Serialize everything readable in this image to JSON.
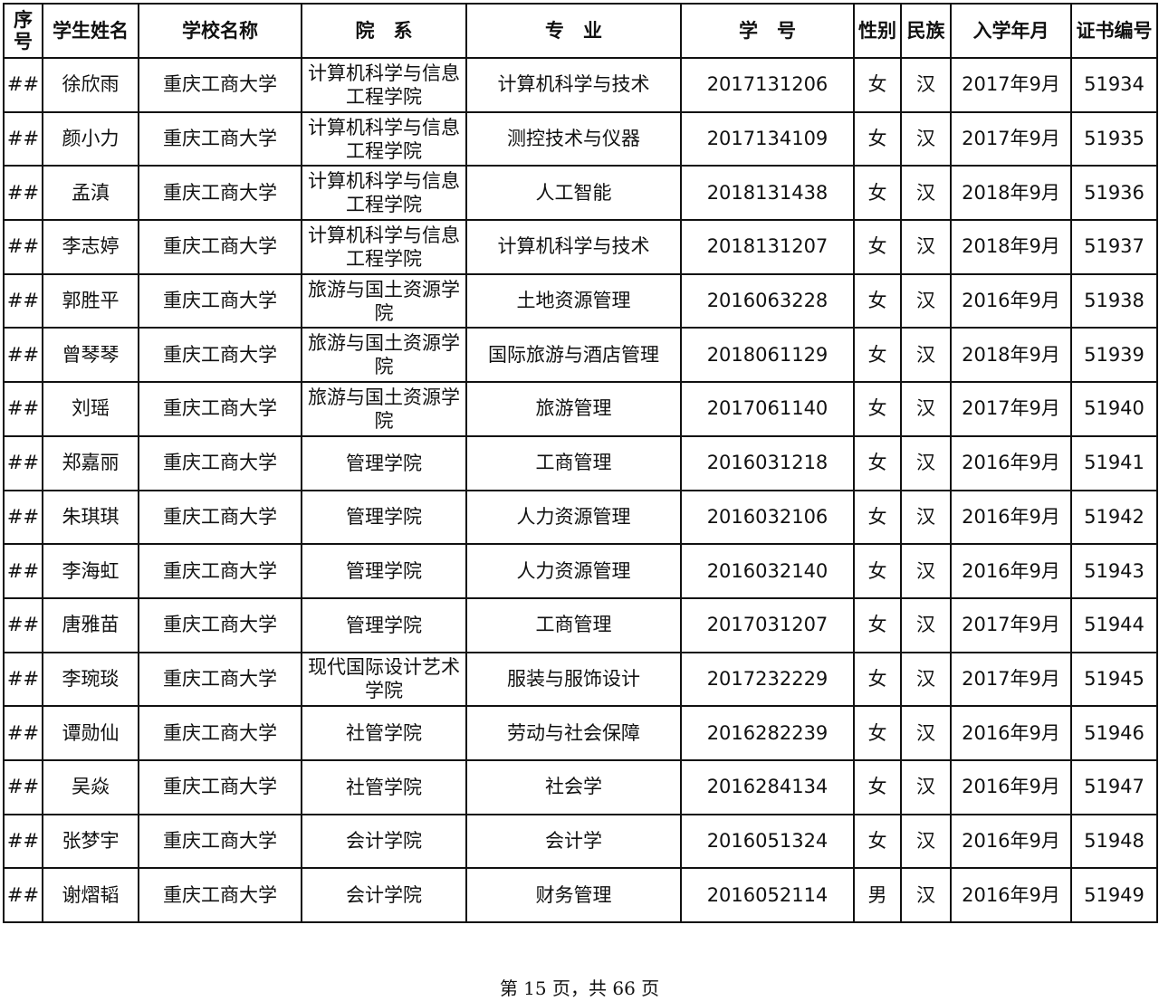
{
  "table": {
    "headers": [
      "序号",
      "学生姓名",
      "学校名称",
      "院　系",
      "专　业",
      "学　号",
      "性别",
      "民族",
      "入学年月",
      "证书编号"
    ],
    "rows": [
      [
        "##",
        "徐欣雨",
        "重庆工商大学",
        "计算机科学与信息工程学院",
        "计算机科学与技术",
        "2017131206",
        "女",
        "汉",
        "2017年9月",
        "51934"
      ],
      [
        "##",
        "颜小力",
        "重庆工商大学",
        "计算机科学与信息工程学院",
        "测控技术与仪器",
        "2017134109",
        "女",
        "汉",
        "2017年9月",
        "51935"
      ],
      [
        "##",
        "孟滇",
        "重庆工商大学",
        "计算机科学与信息工程学院",
        "人工智能",
        "2018131438",
        "女",
        "汉",
        "2018年9月",
        "51936"
      ],
      [
        "##",
        "李志婷",
        "重庆工商大学",
        "计算机科学与信息工程学院",
        "计算机科学与技术",
        "2018131207",
        "女",
        "汉",
        "2018年9月",
        "51937"
      ],
      [
        "##",
        "郭胜平",
        "重庆工商大学",
        "旅游与国土资源学院",
        "土地资源管理",
        "2016063228",
        "女",
        "汉",
        "2016年9月",
        "51938"
      ],
      [
        "##",
        "曾琴琴",
        "重庆工商大学",
        "旅游与国土资源学院",
        "国际旅游与酒店管理",
        "2018061129",
        "女",
        "汉",
        "2018年9月",
        "51939"
      ],
      [
        "##",
        "刘瑶",
        "重庆工商大学",
        "旅游与国土资源学院",
        "旅游管理",
        "2017061140",
        "女",
        "汉",
        "2017年9月",
        "51940"
      ],
      [
        "##",
        "郑嘉丽",
        "重庆工商大学",
        "管理学院",
        "工商管理",
        "2016031218",
        "女",
        "汉",
        "2016年9月",
        "51941"
      ],
      [
        "##",
        "朱琪琪",
        "重庆工商大学",
        "管理学院",
        "人力资源管理",
        "2016032106",
        "女",
        "汉",
        "2016年9月",
        "51942"
      ],
      [
        "##",
        "李海虹",
        "重庆工商大学",
        "管理学院",
        "人力资源管理",
        "2016032140",
        "女",
        "汉",
        "2016年9月",
        "51943"
      ],
      [
        "##",
        "唐雅苗",
        "重庆工商大学",
        "管理学院",
        "工商管理",
        "2017031207",
        "女",
        "汉",
        "2017年9月",
        "51944"
      ],
      [
        "##",
        "李琬琰",
        "重庆工商大学",
        "现代国际设计艺术学院",
        "服装与服饰设计",
        "2017232229",
        "女",
        "汉",
        "2017年9月",
        "51945"
      ],
      [
        "##",
        "谭勋仙",
        "重庆工商大学",
        "社管学院",
        "劳动与社会保障",
        "2016282239",
        "女",
        "汉",
        "2016年9月",
        "51946"
      ],
      [
        "##",
        "吴焱",
        "重庆工商大学",
        "社管学院",
        "社会学",
        "2016284134",
        "女",
        "汉",
        "2016年9月",
        "51947"
      ],
      [
        "##",
        "张梦宇",
        "重庆工商大学",
        "会计学院",
        "会计学",
        "2016051324",
        "女",
        "汉",
        "2016年9月",
        "51948"
      ],
      [
        "##",
        "谢熠韬",
        "重庆工商大学",
        "会计学院",
        "财务管理",
        "2016052114",
        "男",
        "汉",
        "2016年9月",
        "51949"
      ]
    ]
  },
  "footer": {
    "page_text": "第 15 页，共 66 页"
  }
}
